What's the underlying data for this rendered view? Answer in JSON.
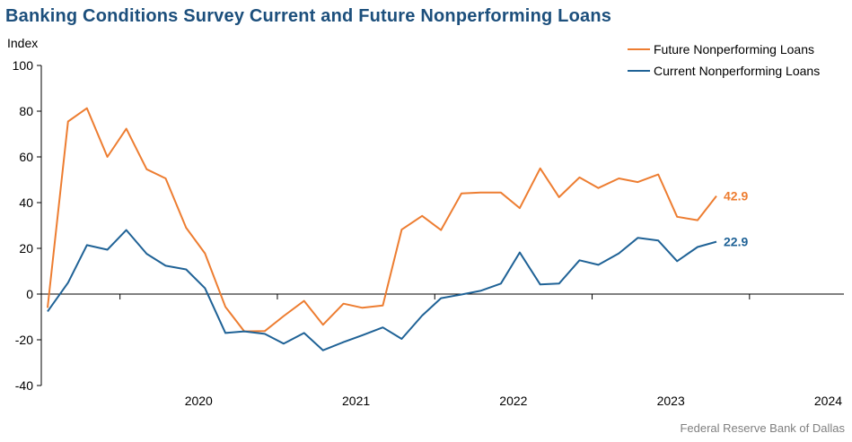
{
  "title": "Banking Conditions Survey Current and Future Nonperforming Loans",
  "source": "Federal Reserve Bank of Dallas",
  "chart_data": {
    "type": "line",
    "ylabel": "Index",
    "xlabel": "",
    "ylim": [
      -40,
      100
    ],
    "yticks": [
      -40,
      -20,
      0,
      20,
      40,
      60,
      80,
      100
    ],
    "xlim": [
      2019.5,
      2024.6
    ],
    "year_labels": [
      "2020",
      "2021",
      "2022",
      "2023",
      "2024"
    ],
    "grid": false,
    "legend_position": "top-right",
    "series": [
      {
        "name": "Future Nonperforming Loans",
        "color": "#ed7d31",
        "end_label": "42.9",
        "points": [
          [
            2019.54,
            -6.0
          ],
          [
            2019.67,
            75.5
          ],
          [
            2019.79,
            81.3
          ],
          [
            2019.92,
            60.0
          ],
          [
            2020.04,
            72.3
          ],
          [
            2020.17,
            54.6
          ],
          [
            2020.29,
            50.6
          ],
          [
            2020.42,
            29.0
          ],
          [
            2020.54,
            17.8
          ],
          [
            2020.67,
            -5.6
          ],
          [
            2020.79,
            -16.3
          ],
          [
            2020.92,
            -16.2
          ],
          [
            2021.04,
            -9.6
          ],
          [
            2021.17,
            -3.0
          ],
          [
            2021.29,
            -13.4
          ],
          [
            2021.42,
            -4.2
          ],
          [
            2021.54,
            -6.0
          ],
          [
            2021.67,
            -5.0
          ],
          [
            2021.79,
            28.2
          ],
          [
            2021.92,
            34.2
          ],
          [
            2022.04,
            28.0
          ],
          [
            2022.17,
            44.0
          ],
          [
            2022.29,
            44.4
          ],
          [
            2022.42,
            44.4
          ],
          [
            2022.54,
            37.6
          ],
          [
            2022.67,
            55.0
          ],
          [
            2022.79,
            42.4
          ],
          [
            2022.92,
            51.0
          ],
          [
            2023.04,
            46.4
          ],
          [
            2023.17,
            50.6
          ],
          [
            2023.29,
            49.0
          ],
          [
            2023.42,
            52.3
          ],
          [
            2023.54,
            33.8
          ],
          [
            2023.67,
            32.3
          ],
          [
            2023.79,
            42.9
          ]
        ]
      },
      {
        "name": "Current Nonperforming Loans",
        "color": "#1f6296",
        "end_label": "22.9",
        "points": [
          [
            2019.54,
            -7.6
          ],
          [
            2019.67,
            5.0
          ],
          [
            2019.79,
            21.4
          ],
          [
            2019.92,
            19.4
          ],
          [
            2020.04,
            28.0
          ],
          [
            2020.17,
            17.6
          ],
          [
            2020.29,
            12.4
          ],
          [
            2020.42,
            10.8
          ],
          [
            2020.54,
            2.6
          ],
          [
            2020.67,
            -17.0
          ],
          [
            2020.79,
            -16.3
          ],
          [
            2020.92,
            -17.4
          ],
          [
            2021.04,
            -21.7
          ],
          [
            2021.17,
            -17.0
          ],
          [
            2021.29,
            -24.6
          ],
          [
            2021.42,
            -21.0
          ],
          [
            2021.54,
            -18.0
          ],
          [
            2021.67,
            -14.6
          ],
          [
            2021.79,
            -19.6
          ],
          [
            2021.92,
            -9.4
          ],
          [
            2022.04,
            -1.8
          ],
          [
            2022.17,
            -0.2
          ],
          [
            2022.29,
            1.4
          ],
          [
            2022.42,
            4.6
          ],
          [
            2022.54,
            18.2
          ],
          [
            2022.67,
            4.2
          ],
          [
            2022.79,
            4.6
          ],
          [
            2022.92,
            14.8
          ],
          [
            2023.04,
            12.8
          ],
          [
            2023.17,
            17.8
          ],
          [
            2023.29,
            24.6
          ],
          [
            2023.42,
            23.4
          ],
          [
            2023.54,
            14.4
          ],
          [
            2023.67,
            20.6
          ],
          [
            2023.79,
            22.9
          ]
        ]
      }
    ]
  }
}
